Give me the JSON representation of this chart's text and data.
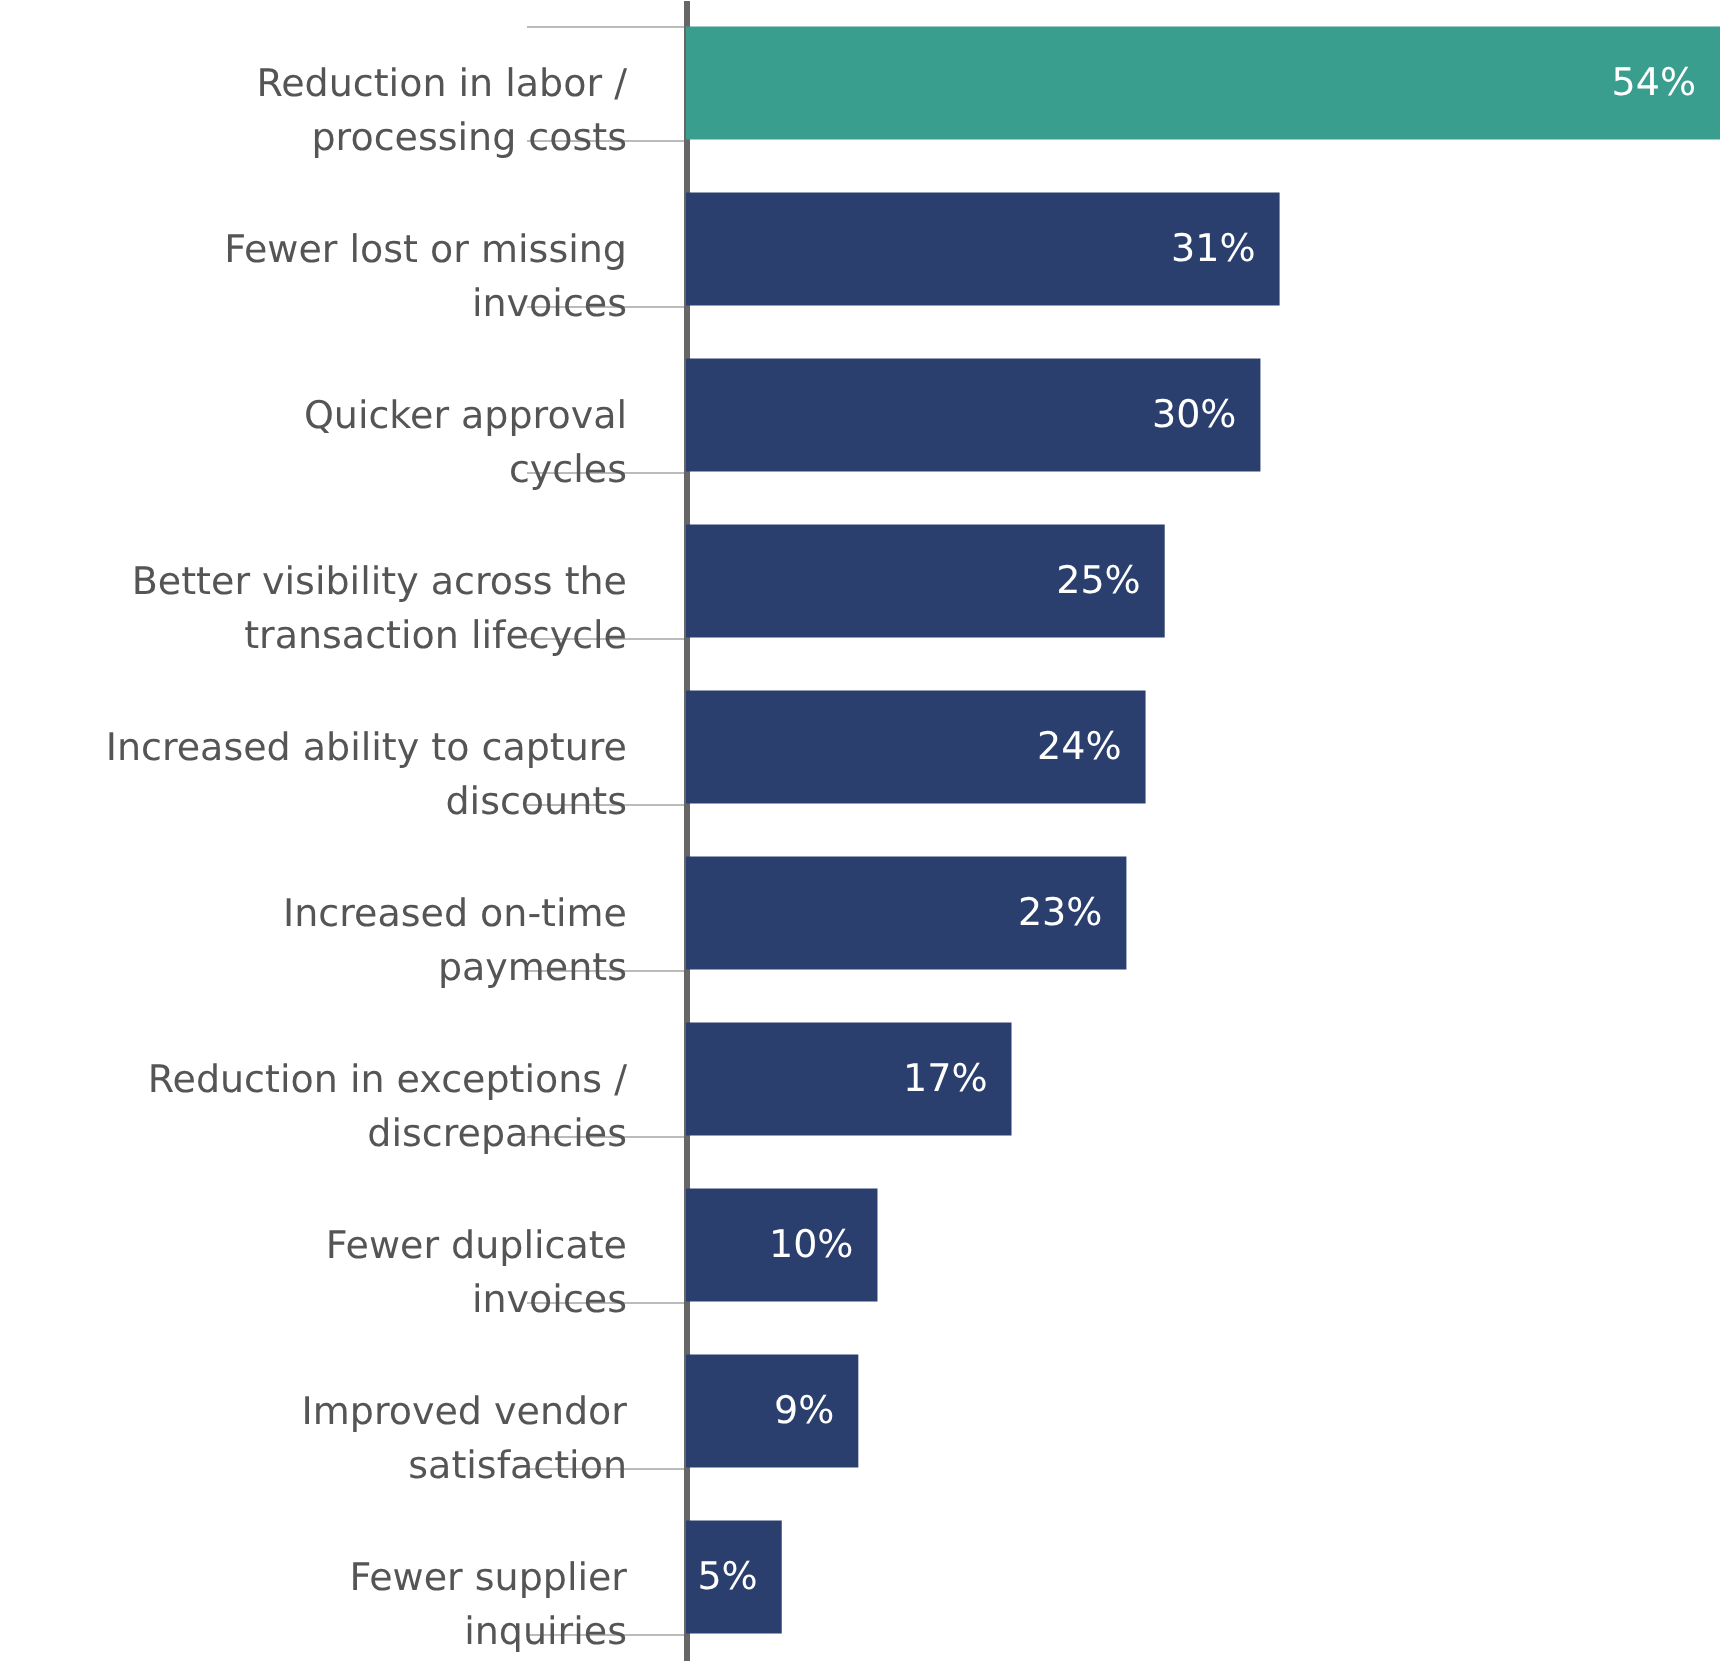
{
  "chart_data": {
    "type": "bar",
    "orientation": "horizontal",
    "categories": [
      "Reduction in labor /\nprocessing costs",
      "Fewer lost or missing\ninvoices",
      "Quicker approval\ncycles",
      "Better visibility across the\ntransaction lifecycle",
      "Increased ability to capture\ndiscounts",
      "Increased on-time\npayments",
      "Reduction in exceptions /\ndiscrepancies",
      "Fewer duplicate\ninvoices",
      "Improved vendor\nsatisfaction",
      "Fewer supplier\ninquiries"
    ],
    "values": [
      54,
      31,
      30,
      25,
      24,
      23,
      17,
      10,
      9,
      5
    ],
    "colors": [
      "#3a9e8f",
      "#2b3f6e",
      "#2b3f6e",
      "#2b3f6e",
      "#2b3f6e",
      "#2b3f6e",
      "#2b3f6e",
      "#2b3f6e",
      "#2b3f6e",
      "#2b3f6e"
    ],
    "value_labels": [
      "54%",
      "31%",
      "30%",
      "25%",
      "24%",
      "23%",
      "17%",
      "10%",
      "9%",
      "5%"
    ]
  }
}
